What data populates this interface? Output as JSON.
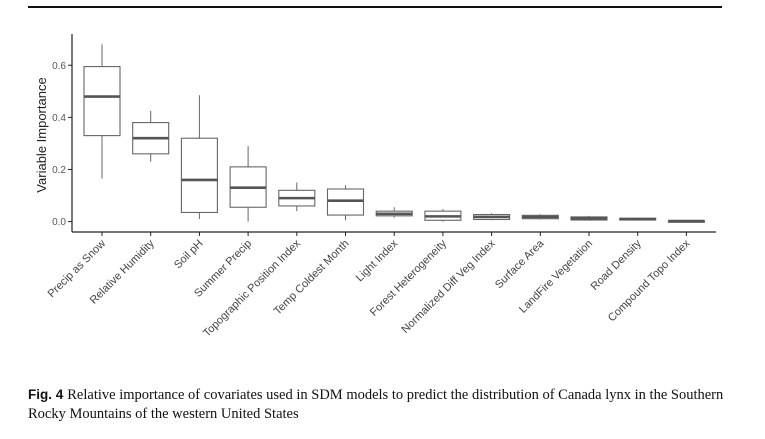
{
  "figure": {
    "label": "Fig. 4",
    "caption": "Relative importance of covariates used in SDM models to predict the distribution of Canada lynx in the Southern Rocky Mountains of the western United States"
  },
  "chart_data": {
    "type": "boxplot",
    "ylabel": "Variable Importance",
    "xlabel": "",
    "yticks": [
      0.0,
      0.2,
      0.4,
      0.6
    ],
    "ytick_labels": [
      "0.0",
      "0.2",
      "0.4",
      "0.6"
    ],
    "ylim": [
      -0.04,
      0.72
    ],
    "grid": false,
    "categories": [
      "Precip as Snow",
      "Relative Humidity",
      "Soil pH",
      "Summer Precip",
      "Topographic Position Index",
      "Temp Coldest Month",
      "Light Index",
      "Forest Heterogeneity",
      "Normalized Diff Veg Index",
      "Surface Area",
      "LandFire Vegetation",
      "Road Density",
      "Compound Topo Index"
    ],
    "boxes": [
      {
        "min": 0.165,
        "q1": 0.33,
        "median": 0.48,
        "q3": 0.595,
        "max": 0.68
      },
      {
        "min": 0.23,
        "q1": 0.26,
        "median": 0.32,
        "q3": 0.38,
        "max": 0.425
      },
      {
        "min": 0.01,
        "q1": 0.035,
        "median": 0.16,
        "q3": 0.32,
        "max": 0.485
      },
      {
        "min": 0.0,
        "q1": 0.055,
        "median": 0.13,
        "q3": 0.21,
        "max": 0.29
      },
      {
        "min": 0.04,
        "q1": 0.06,
        "median": 0.09,
        "q3": 0.12,
        "max": 0.15
      },
      {
        "min": 0.005,
        "q1": 0.025,
        "median": 0.08,
        "q3": 0.125,
        "max": 0.14
      },
      {
        "min": 0.015,
        "q1": 0.022,
        "median": 0.03,
        "q3": 0.04,
        "max": 0.055
      },
      {
        "min": 0.0,
        "q1": 0.005,
        "median": 0.02,
        "q3": 0.04,
        "max": 0.048
      },
      {
        "min": 0.005,
        "q1": 0.008,
        "median": 0.018,
        "q3": 0.027,
        "max": 0.032
      },
      {
        "min": 0.008,
        "q1": 0.011,
        "median": 0.018,
        "q3": 0.024,
        "max": 0.028
      },
      {
        "min": 0.003,
        "q1": 0.006,
        "median": 0.012,
        "q3": 0.018,
        "max": 0.022
      },
      {
        "min": 0.004,
        "q1": 0.006,
        "median": 0.009,
        "q3": 0.013,
        "max": 0.015
      },
      {
        "min": 0.0,
        "q1": 0.001,
        "median": 0.002,
        "q3": 0.003,
        "max": 0.004
      }
    ]
  }
}
